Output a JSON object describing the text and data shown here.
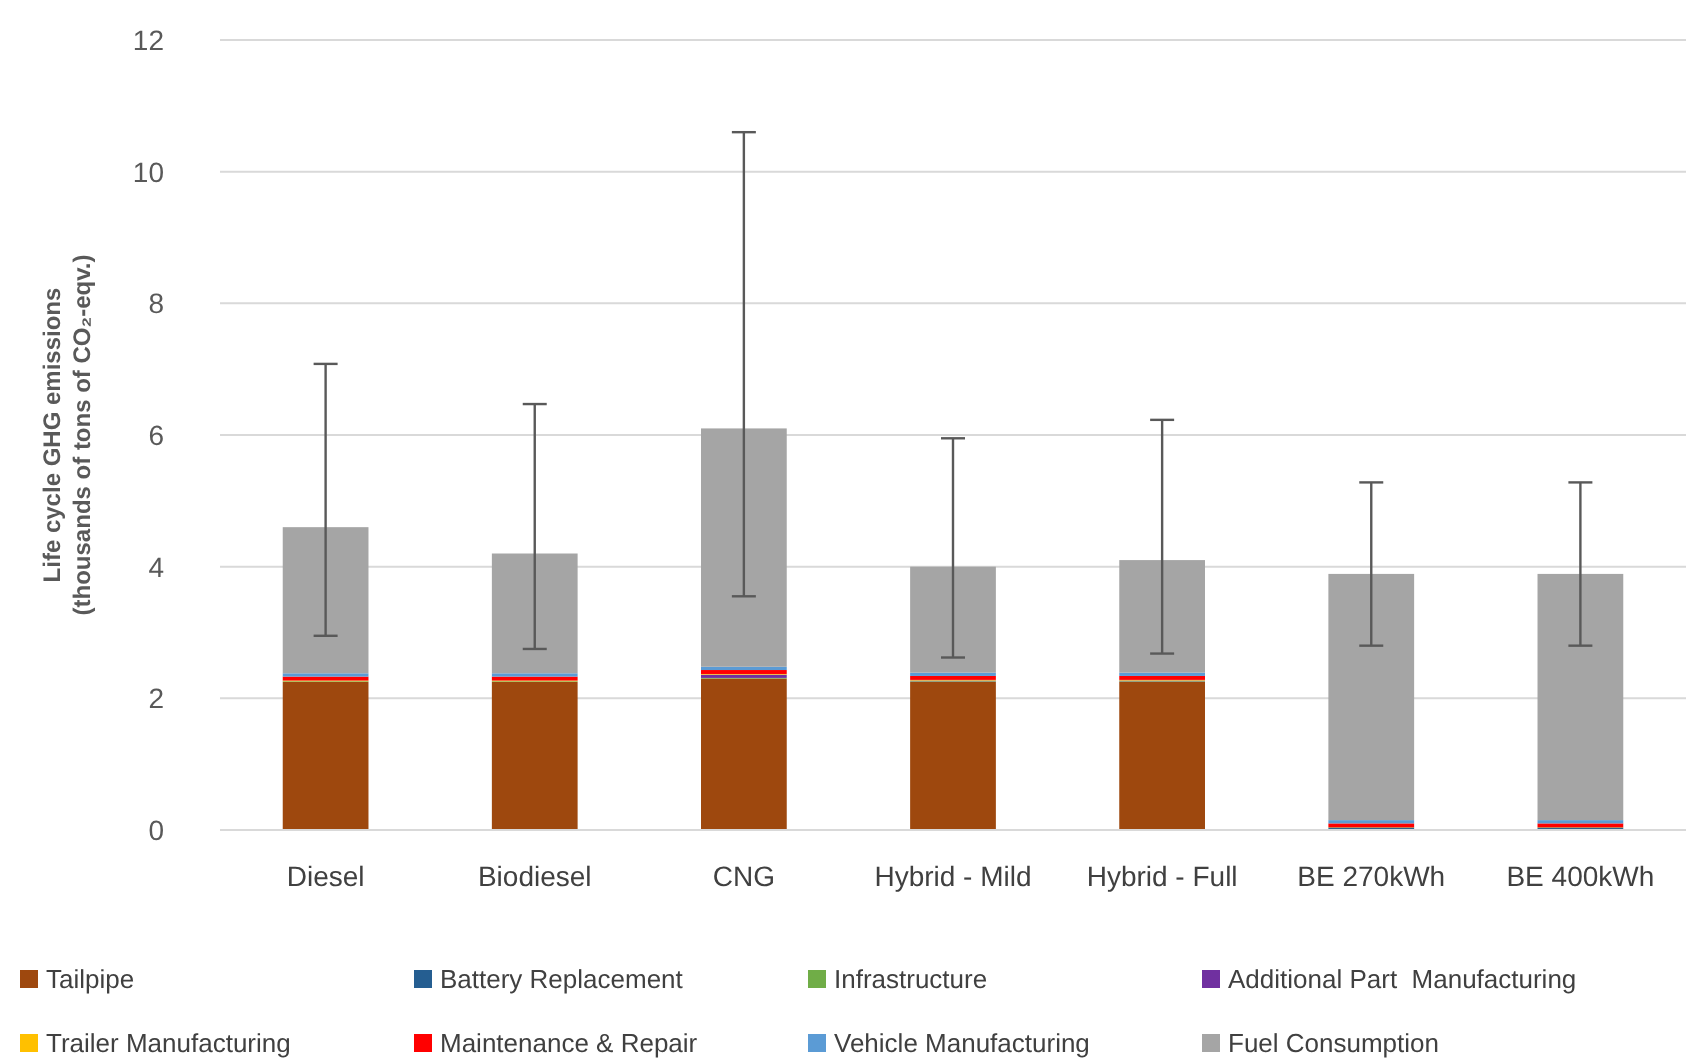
{
  "chart_data": {
    "type": "bar",
    "stacked": true,
    "ylabel": "Life cycle GHG emissions\n(thousands of tons of CO₂-eqv.)",
    "categories": [
      "Diesel",
      "Biodiesel",
      "CNG",
      "Hybrid - Mild",
      "Hybrid - Full",
      "BE 270kWh",
      "BE 400kWh"
    ],
    "series": [
      {
        "name": "Tailpipe",
        "color": "#9e480e",
        "values": [
          2.25,
          2.25,
          2.3,
          2.25,
          2.25,
          0,
          0
        ]
      },
      {
        "name": "Battery Replacement",
        "color": "#255e91",
        "values": [
          0,
          0,
          0,
          0,
          0,
          0.03,
          0.03
        ]
      },
      {
        "name": "Infrastructure",
        "color": "#70ad47",
        "values": [
          0.01,
          0.01,
          0.01,
          0.01,
          0.01,
          0.01,
          0.01
        ]
      },
      {
        "name": "Additional Part  Manufacturing",
        "color": "#7030a0",
        "values": [
          0,
          0,
          0.05,
          0.01,
          0.01,
          0,
          0
        ]
      },
      {
        "name": "Trailer Manufacturing",
        "color": "#ffc000",
        "values": [
          0.01,
          0.01,
          0.01,
          0.01,
          0.01,
          null,
          null
        ]
      },
      {
        "name": "Maintenance & Repair",
        "color": "#ff0000",
        "values": [
          0.06,
          0.06,
          0.06,
          0.06,
          0.06,
          0.06,
          0.06
        ]
      },
      {
        "name": "Vehicle Manufacturing",
        "color": "#5b9bd5",
        "values": [
          0.05,
          0.05,
          0.05,
          0.05,
          0.05,
          0.05,
          0.05
        ]
      },
      {
        "name": "Fuel Consumption",
        "color": "#a5a5a5",
        "values": [
          2.22,
          1.82,
          3.62,
          1.61,
          1.71,
          3.74,
          3.74
        ],
        "errors": [
          [
            2.95,
            7.08
          ],
          [
            2.75,
            6.47
          ],
          [
            3.55,
            10.6
          ],
          [
            2.62,
            5.95
          ],
          [
            2.68,
            6.23
          ],
          [
            2.8,
            5.28
          ],
          [
            2.8,
            5.28
          ]
        ]
      }
    ],
    "ylim": [
      0,
      12
    ],
    "yticks": [
      0,
      2,
      4,
      6,
      8,
      10,
      12
    ],
    "grid": "y",
    "legend": "bottom"
  }
}
